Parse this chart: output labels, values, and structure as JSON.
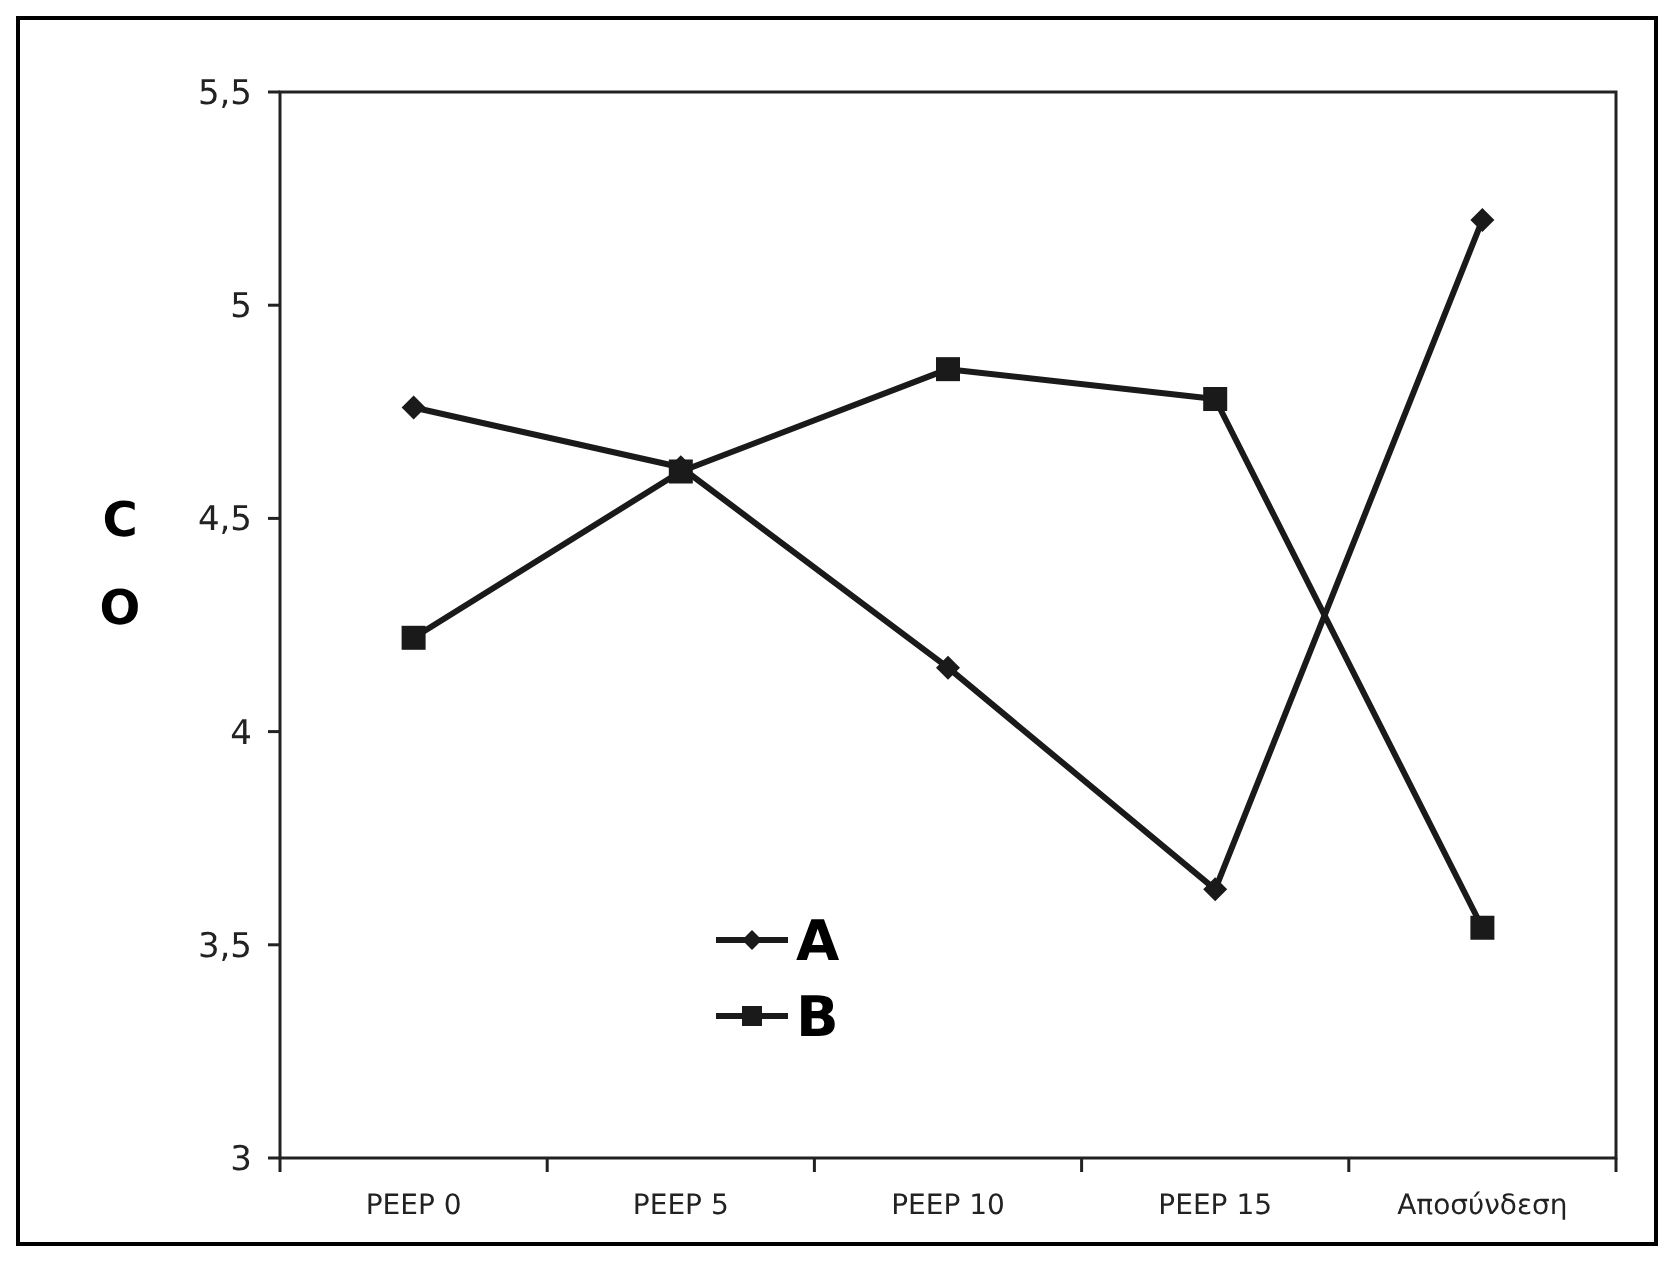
{
  "chart_data": {
    "type": "line",
    "ylabel": "CO",
    "categories": [
      "PEEP 0",
      "PEEP 5",
      "PEEP 10",
      "PEEP 15",
      "Αποσύνδεση"
    ],
    "series": [
      {
        "name": "A",
        "color": "#1a1a1a",
        "marker": "diamond",
        "values": [
          4.76,
          4.62,
          4.15,
          3.63,
          5.2
        ]
      },
      {
        "name": "B",
        "color": "#1a1a1a",
        "marker": "square",
        "values": [
          4.22,
          4.61,
          4.85,
          4.78,
          3.54
        ]
      }
    ],
    "ylim": [
      3,
      5.5
    ],
    "yticks": [
      {
        "value": 3,
        "label": "3"
      },
      {
        "value": 3.5,
        "label": "3,5"
      },
      {
        "value": 4,
        "label": "4"
      },
      {
        "value": 4.5,
        "label": "4,5"
      },
      {
        "value": 5,
        "label": "5"
      },
      {
        "value": 5.5,
        "label": "5,5"
      }
    ],
    "grid": false,
    "legend": "bottom",
    "line_style": "solid"
  }
}
